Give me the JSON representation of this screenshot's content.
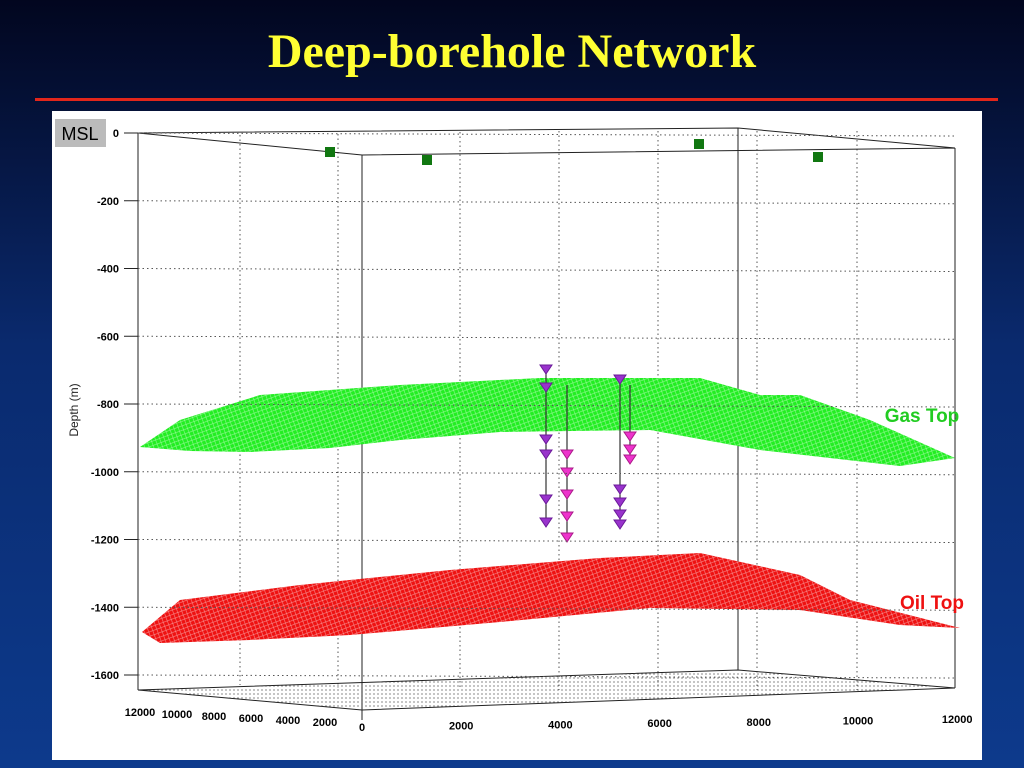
{
  "title": "Deep-borehole Network",
  "figure": {
    "msl_label": "MSL",
    "y_axis_label": "Depth (m)",
    "depth_ticks": [
      "0",
      "-200",
      "-400",
      "-600",
      "-800",
      "-1000",
      "-1200",
      "-1400",
      "-1600"
    ],
    "x_ticks_left": [
      "12000",
      "10000",
      "8000",
      "6000",
      "4000",
      "2000"
    ],
    "x_ticks_right": [
      "0",
      "2000",
      "4000",
      "6000",
      "8000",
      "10000",
      "12000"
    ],
    "annotations": {
      "gas_top": "Gas Top",
      "oil_top": "Oil Top"
    }
  }
}
